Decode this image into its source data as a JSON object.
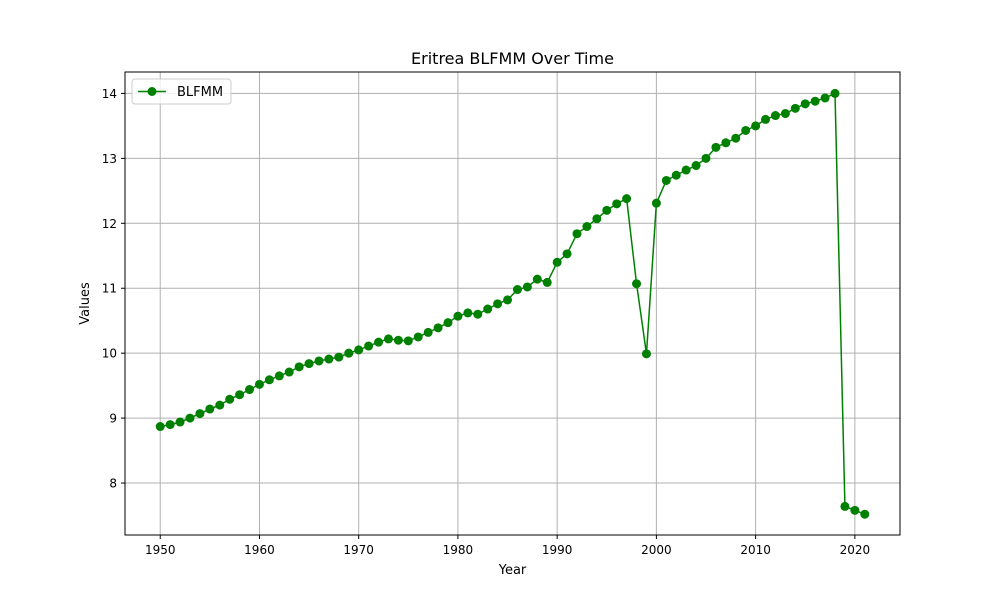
{
  "chart_data": {
    "type": "line",
    "title": "Eritrea BLFMM Over Time",
    "xlabel": "Year",
    "ylabel": "Values",
    "xlim": [
      1946.45,
      2024.55
    ],
    "ylim": [
      7.2,
      14.33
    ],
    "xticks": [
      1950,
      1960,
      1970,
      1980,
      1990,
      2000,
      2010,
      2020
    ],
    "yticks": [
      8,
      9,
      10,
      11,
      12,
      13,
      14
    ],
    "grid": true,
    "legend_position": "top-left",
    "series": [
      {
        "name": "BLFMM",
        "color": "#008000",
        "marker": "circle",
        "x": [
          1950,
          1951,
          1952,
          1953,
          1954,
          1955,
          1956,
          1957,
          1958,
          1959,
          1960,
          1961,
          1962,
          1963,
          1964,
          1965,
          1966,
          1967,
          1968,
          1969,
          1970,
          1971,
          1972,
          1973,
          1974,
          1975,
          1976,
          1977,
          1978,
          1979,
          1980,
          1981,
          1982,
          1983,
          1984,
          1985,
          1986,
          1987,
          1988,
          1989,
          1990,
          1991,
          1992,
          1993,
          1994,
          1995,
          1996,
          1997,
          1998,
          1999,
          2000,
          2001,
          2002,
          2003,
          2004,
          2005,
          2006,
          2007,
          2008,
          2009,
          2010,
          2011,
          2012,
          2013,
          2014,
          2015,
          2016,
          2017,
          2018,
          2019,
          2020,
          2021
        ],
        "values": [
          8.87,
          8.9,
          8.94,
          9.0,
          9.07,
          9.14,
          9.2,
          9.29,
          9.36,
          9.44,
          9.52,
          9.59,
          9.65,
          9.71,
          9.79,
          9.84,
          9.88,
          9.91,
          9.94,
          10.0,
          10.05,
          10.11,
          10.17,
          10.22,
          10.2,
          10.19,
          10.25,
          10.32,
          10.39,
          10.47,
          10.57,
          10.62,
          10.6,
          10.68,
          10.76,
          10.82,
          10.98,
          11.02,
          11.14,
          11.09,
          11.4,
          11.53,
          11.84,
          11.95,
          12.07,
          12.2,
          12.3,
          12.38,
          11.07,
          9.99,
          12.31,
          12.66,
          12.74,
          12.82,
          12.89,
          13.0,
          13.17,
          13.24,
          13.31,
          13.43,
          13.5,
          13.6,
          13.66,
          13.69,
          13.77,
          13.84,
          13.88,
          13.93,
          14.0,
          7.64,
          7.58,
          7.52
        ]
      }
    ]
  }
}
